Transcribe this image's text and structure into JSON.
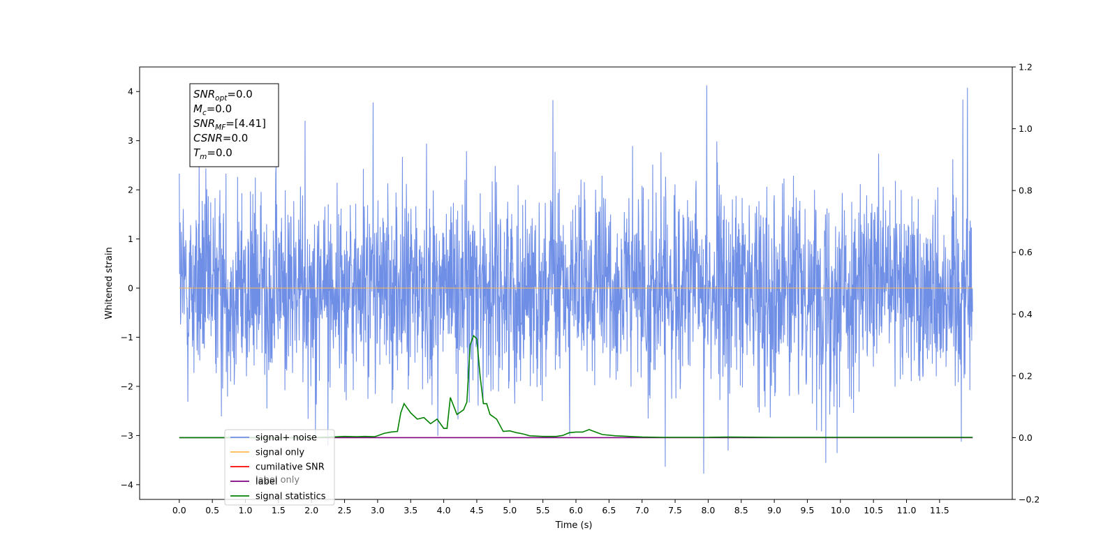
{
  "chart_data": {
    "type": "line",
    "xlabel": "Time (s)",
    "ylabel": "Whitened strain",
    "xlim": [
      -0.6,
      12.6
    ],
    "ylim": [
      -4.3,
      4.5
    ],
    "y2lim": [
      -0.2,
      1.2
    ],
    "x_ticks": [
      "0.0",
      "0.5",
      "1.0",
      "1.5",
      "2.0",
      "2.5",
      "3.0",
      "3.5",
      "4.0",
      "4.5",
      "5.0",
      "5.5",
      "6.0",
      "6.5",
      "7.0",
      "7.5",
      "8.0",
      "8.5",
      "9.0",
      "9.5",
      "10.0",
      "10.5",
      "11.0",
      "11.5"
    ],
    "y_ticks": [
      "−4",
      "−3",
      "−2",
      "−1",
      "0",
      "1",
      "2",
      "3",
      "4"
    ],
    "y2_ticks": [
      "−0.2",
      "0.0",
      "0.2",
      "0.4",
      "0.6",
      "0.8",
      "1.0",
      "1.2"
    ],
    "annotation": {
      "lines": [
        {
          "base": "SNR",
          "sub": "opt",
          "value": "=0.0"
        },
        {
          "base": "M",
          "sub": "c",
          "value": "=0.0"
        },
        {
          "base": "SNR",
          "sub": "MF",
          "value": "=[4.41]"
        },
        {
          "base": "CSNR",
          "sub": "",
          "value": "=0.0"
        },
        {
          "base": "T",
          "sub": "m",
          "value": "=0.0"
        }
      ]
    },
    "legend": {
      "placement": "lower-left",
      "entries": [
        {
          "label": "signal+ noise",
          "color": "#6f8ee6"
        },
        {
          "label": "signal only",
          "color": "#ffb84d"
        },
        {
          "label": "cumilative SNR",
          "color": "#ff0000"
        },
        {
          "label": "label",
          "color": "#800080"
        },
        {
          "label": "signal statistics",
          "color": "#008000"
        }
      ]
    },
    "hidden_legend_text": [
      "label only"
    ],
    "series": [
      {
        "name": "signal+ noise",
        "axis": "left",
        "color": "#6f8ee6",
        "kind": "gaussian-noise",
        "x_range": [
          0.0,
          12.0
        ],
        "mean": 0.0,
        "std": 1.0,
        "notable_peaks": [
          {
            "x": 0.0,
            "y": 2.33
          },
          {
            "x": 0.0,
            "y": -3.05
          },
          {
            "x": 0.3,
            "y": 2.65
          },
          {
            "x": 1.9,
            "y": 3.4
          },
          {
            "x": 2.25,
            "y": -3.2
          },
          {
            "x": 2.93,
            "y": 3.77
          },
          {
            "x": 5.65,
            "y": 3.82
          },
          {
            "x": 7.35,
            "y": -3.63
          },
          {
            "x": 7.93,
            "y": -3.77
          },
          {
            "x": 7.98,
            "y": 4.12
          },
          {
            "x": 8.3,
            "y": -3.3
          },
          {
            "x": 9.78,
            "y": -3.55
          },
          {
            "x": 9.95,
            "y": -3.35
          },
          {
            "x": 11.83,
            "y": -3.12
          },
          {
            "x": 11.85,
            "y": 3.83
          },
          {
            "x": 11.92,
            "y": 4.07
          }
        ]
      },
      {
        "name": "signal only",
        "axis": "left",
        "color": "#ffb84d",
        "x": [
          0.0,
          12.0
        ],
        "y": [
          0.0,
          0.0
        ]
      },
      {
        "name": "label",
        "axis": "right",
        "color": "#800080",
        "x": [
          0.0,
          12.0
        ],
        "y": [
          0.0,
          0.0
        ]
      },
      {
        "name": "signal statistics",
        "axis": "right",
        "color": "#008000",
        "x": [
          0.0,
          2.0,
          2.3,
          2.5,
          2.7,
          2.8,
          2.95,
          3.0,
          3.1,
          3.2,
          3.3,
          3.35,
          3.4,
          3.5,
          3.6,
          3.7,
          3.8,
          3.9,
          4.0,
          4.05,
          4.1,
          4.2,
          4.3,
          4.35,
          4.4,
          4.45,
          4.5,
          4.55,
          4.6,
          4.65,
          4.7,
          4.8,
          4.9,
          5.0,
          5.1,
          5.2,
          5.3,
          5.5,
          5.7,
          5.8,
          5.9,
          6.0,
          6.1,
          6.2,
          6.25,
          6.3,
          6.4,
          6.6,
          6.8,
          7.0,
          7.3,
          8.0,
          8.3,
          9.0,
          12.0
        ],
        "y": [
          0.0,
          0.0,
          0.002,
          0.004,
          0.003,
          0.004,
          0.003,
          0.006,
          0.014,
          0.018,
          0.02,
          0.08,
          0.11,
          0.08,
          0.06,
          0.065,
          0.045,
          0.06,
          0.03,
          0.03,
          0.13,
          0.075,
          0.09,
          0.115,
          0.3,
          0.33,
          0.32,
          0.2,
          0.11,
          0.11,
          0.075,
          0.06,
          0.02,
          0.022,
          0.016,
          0.012,
          0.006,
          0.004,
          0.004,
          0.007,
          0.016,
          0.018,
          0.018,
          0.026,
          0.022,
          0.018,
          0.01,
          0.006,
          0.004,
          0.002,
          0.001,
          0.001,
          0.002,
          0.001,
          0.001
        ]
      }
    ]
  }
}
